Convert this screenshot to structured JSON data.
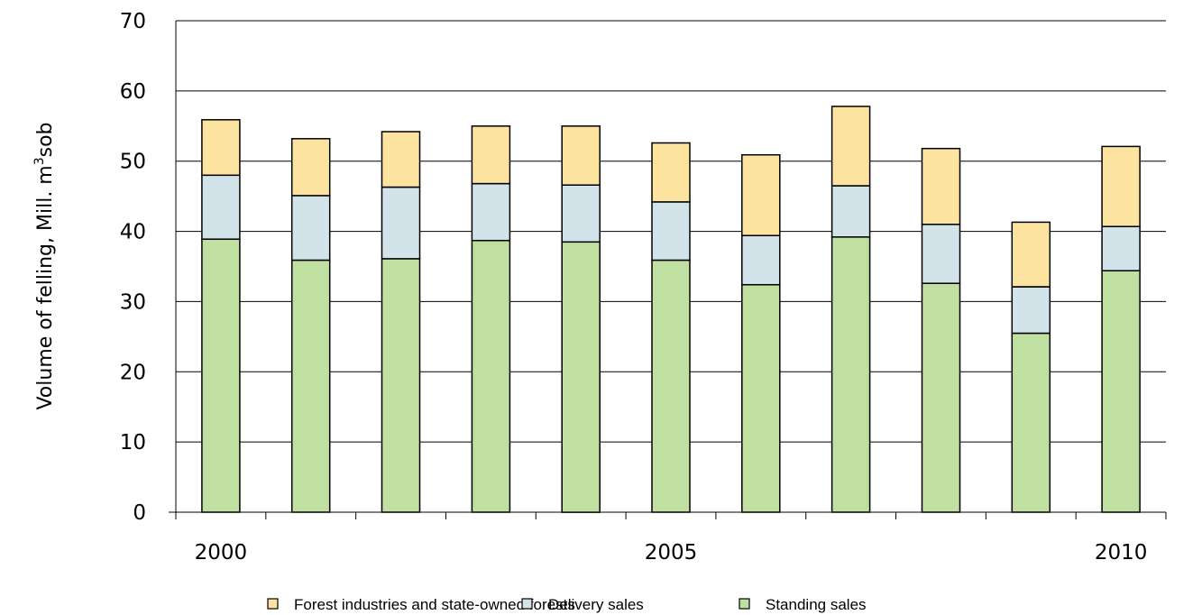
{
  "chart_data": {
    "type": "bar",
    "stacked": true,
    "categories": [
      "2000",
      "2001",
      "2002",
      "2003",
      "2004",
      "2005",
      "2006",
      "2007",
      "2008",
      "2009",
      "2010"
    ],
    "x_tick_labels": [
      {
        "index": 0,
        "text": "2000"
      },
      {
        "index": 5,
        "text": "2005"
      },
      {
        "index": 10,
        "text": "2010"
      }
    ],
    "series": [
      {
        "name": "Standing sales",
        "color": "#bfe0a0",
        "values": [
          38.9,
          35.9,
          36.1,
          38.7,
          38.5,
          35.9,
          32.4,
          39.2,
          32.6,
          25.5,
          34.4
        ]
      },
      {
        "name": "Delivery sales",
        "color": "#d2e4ea",
        "values": [
          9.1,
          9.2,
          10.2,
          8.1,
          8.1,
          8.3,
          7.0,
          7.3,
          8.4,
          6.6,
          6.3
        ]
      },
      {
        "name": "Forest industries and state-owned forests",
        "color": "#fde3a0",
        "values": [
          7.9,
          8.1,
          7.9,
          8.2,
          8.4,
          8.4,
          11.5,
          11.3,
          10.8,
          9.2,
          11.4
        ]
      }
    ],
    "legend_order": [
      "Forest industries and state-owned forests",
      "Delivery sales",
      "Standing sales"
    ],
    "ylabel": {
      "main": "Volume of felling, Mill. m",
      "sup": "3",
      "tail": "sob"
    },
    "xlabel": "",
    "ylim": [
      0,
      70
    ],
    "yticks": [
      0,
      10,
      20,
      30,
      40,
      50,
      60,
      70
    ],
    "grid": true,
    "legend_position": "bottom"
  }
}
